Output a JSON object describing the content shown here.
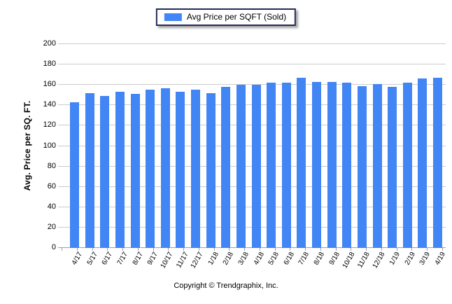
{
  "legend": {
    "label": "Avg Price per SQFT (Sold)",
    "swatch_color": "#4285F4"
  },
  "footer": {
    "copyright": "Copyright © Trendgraphix, Inc."
  },
  "chart_data": {
    "type": "bar",
    "title": "",
    "xlabel": "",
    "ylabel": "Avg. Price per SQ. FT.",
    "categories": [
      "4/17",
      "5/17",
      "6/17",
      "7/17",
      "8/17",
      "9/17",
      "10/17",
      "11/17",
      "12/17",
      "1/18",
      "2/18",
      "3/18",
      "4/18",
      "5/18",
      "6/18",
      "7/18",
      "8/18",
      "9/18",
      "10/18",
      "11/18",
      "12/18",
      "1/19",
      "2/19",
      "3/19",
      "4/19"
    ],
    "values": [
      143,
      152,
      149,
      153,
      151,
      155,
      157,
      153,
      155,
      152,
      158,
      160,
      160,
      162,
      162,
      167,
      163,
      163,
      162,
      159,
      161,
      158,
      162,
      166,
      167
    ],
    "series": [
      {
        "name": "Avg Price per SQFT (Sold)",
        "values": [
          143,
          152,
          149,
          153,
          151,
          155,
          157,
          153,
          155,
          152,
          158,
          160,
          160,
          162,
          162,
          167,
          163,
          163,
          162,
          159,
          161,
          158,
          162,
          166,
          167
        ]
      }
    ],
    "ylim": [
      0,
      200
    ],
    "ytick_step": 20,
    "grid": true,
    "legend_position": "top-center",
    "bar_color": "#4285F4",
    "gridline_color": "#cccccc",
    "axis_color": "#a0a0a0"
  }
}
